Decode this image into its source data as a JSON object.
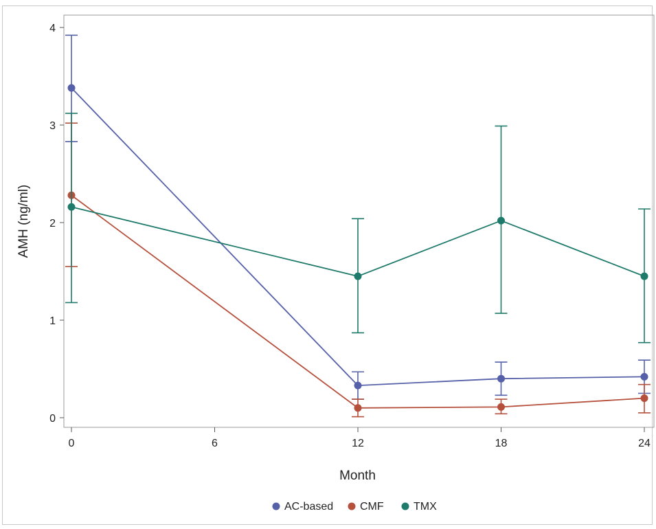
{
  "chart_data": {
    "type": "line",
    "title": "",
    "xlabel": "Month",
    "ylabel": "AMH (ng/ml)",
    "x_ticks": [
      0,
      6,
      12,
      18,
      24
    ],
    "y_ticks": [
      0,
      1,
      2,
      3,
      4
    ],
    "xlim": [
      0,
      24
    ],
    "ylim": [
      0,
      4
    ],
    "grid": false,
    "legend_position": "bottom-center",
    "series": [
      {
        "name": "AC-based",
        "color": "#5560a8",
        "points": [
          {
            "x": 0,
            "y": 3.38,
            "lower": 2.83,
            "upper": 3.92
          },
          {
            "x": 12,
            "y": 0.33,
            "lower": 0.19,
            "upper": 0.47
          },
          {
            "x": 18,
            "y": 0.4,
            "lower": 0.23,
            "upper": 0.57
          },
          {
            "x": 24,
            "y": 0.42,
            "lower": 0.25,
            "upper": 0.59
          }
        ]
      },
      {
        "name": "CMF",
        "color": "#b5503c",
        "points": [
          {
            "x": 0,
            "y": 2.28,
            "lower": 1.55,
            "upper": 3.02
          },
          {
            "x": 12,
            "y": 0.1,
            "lower": 0.01,
            "upper": 0.19
          },
          {
            "x": 18,
            "y": 0.11,
            "lower": 0.04,
            "upper": 0.19
          },
          {
            "x": 24,
            "y": 0.2,
            "lower": 0.05,
            "upper": 0.34
          }
        ]
      },
      {
        "name": "TMX",
        "color": "#1e7a6a",
        "points": [
          {
            "x": 0,
            "y": 2.16,
            "lower": 1.18,
            "upper": 3.12
          },
          {
            "x": 12,
            "y": 1.45,
            "lower": 0.87,
            "upper": 2.04
          },
          {
            "x": 18,
            "y": 2.02,
            "lower": 1.07,
            "upper": 2.99
          },
          {
            "x": 24,
            "y": 1.45,
            "lower": 0.77,
            "upper": 2.14
          }
        ]
      }
    ]
  }
}
